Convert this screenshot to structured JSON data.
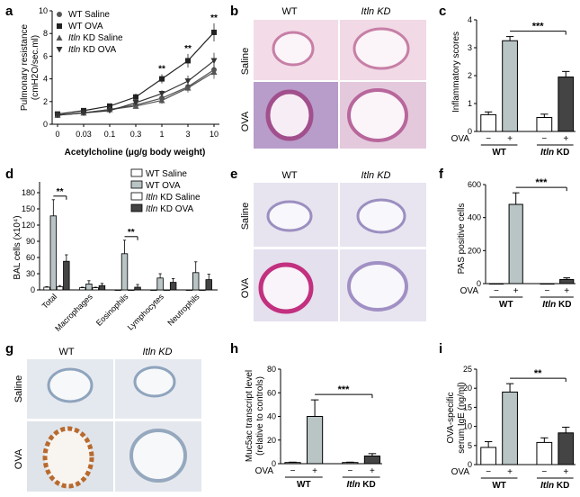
{
  "panel_letters": [
    "a",
    "b",
    "c",
    "d",
    "e",
    "f",
    "g",
    "h",
    "i"
  ],
  "micrographs": {
    "b": {
      "col_labels": [
        "WT",
        "Itln KD"
      ],
      "row_labels": [
        "Saline",
        "OVA"
      ]
    },
    "e": {
      "col_labels": [
        "WT",
        "Itln KD"
      ],
      "row_labels": [
        "Saline",
        "OVA"
      ]
    },
    "g": {
      "col_labels": [
        "WT",
        "Itln KD"
      ],
      "row_labels": [
        "Saline",
        "OVA"
      ]
    }
  },
  "group_axis": {
    "ova_label": "OVA",
    "ova_states": [
      "−",
      "+",
      "−",
      "+"
    ],
    "groups": [
      "WT",
      "Itln KD"
    ]
  },
  "colors": {
    "wt_saline": "#ffffff",
    "wt_ova": "#b9c4c5",
    "kd_saline": "#ffffff",
    "kd_ova": "#444444",
    "line_wt_saline": "#555555",
    "line_wt_ova": "#222222",
    "line_kd_saline": "#555555",
    "line_kd_ova": "#333333"
  },
  "chart_data": [
    {
      "panel": "a",
      "type": "line",
      "xlabel": "Acetylcholine (μg/g body weight)",
      "ylabel_line1": "Pulmonary resistance",
      "ylabel_line2": "(cmH2O/sec.ml)",
      "categories": [
        "0",
        "0.03",
        "0.1",
        "0.3",
        "1",
        "3",
        "10"
      ],
      "ylim": [
        0,
        10
      ],
      "yticks": [
        "0",
        "2",
        "4",
        "6",
        "8",
        "10"
      ],
      "series": [
        {
          "name": "WT Saline",
          "marker": "circle",
          "values": [
            0.8,
            1.0,
            1.3,
            1.7,
            2.3,
            3.3,
            4.8
          ],
          "err": [
            0.1,
            0.1,
            0.2,
            0.2,
            0.3,
            0.4,
            0.6
          ]
        },
        {
          "name": "WT OVA",
          "marker": "square",
          "values": [
            0.9,
            1.2,
            1.6,
            2.4,
            4.0,
            5.6,
            8.1
          ],
          "err": [
            0.1,
            0.1,
            0.2,
            0.3,
            0.4,
            0.6,
            0.8
          ]
        },
        {
          "name": "Itln KD Saline",
          "marker": "triangle-up",
          "values": [
            0.8,
            1.0,
            1.3,
            1.6,
            2.1,
            3.2,
            4.6
          ],
          "err": [
            0.1,
            0.1,
            0.2,
            0.2,
            0.3,
            0.4,
            0.6
          ]
        },
        {
          "name": "Itln KD OVA",
          "marker": "triangle-down",
          "values": [
            0.8,
            1.0,
            1.2,
            1.9,
            2.7,
            3.8,
            5.6
          ],
          "err": [
            0.1,
            0.1,
            0.2,
            0.2,
            0.3,
            0.5,
            0.7
          ]
        }
      ],
      "annotations": [
        "**",
        "**",
        "**"
      ]
    },
    {
      "panel": "c",
      "type": "bar",
      "ylabel": "Inflammatory scores",
      "ylim": [
        0,
        4
      ],
      "yticks": [
        "0",
        "1",
        "2",
        "3",
        "4"
      ],
      "values": [
        0.6,
        3.25,
        0.5,
        1.95
      ],
      "err": [
        0.1,
        0.15,
        0.12,
        0.2
      ],
      "sig": "***"
    },
    {
      "panel": "d",
      "type": "bar",
      "ylabel": "BAL cells (x10⁴)",
      "ylim": [
        0,
        200
      ],
      "yticks": [
        "0",
        "30",
        "60",
        "90",
        "120",
        "150",
        "180"
      ],
      "categories": [
        "Total",
        "Macrophages",
        "Eosinophils",
        "Lymphocytes",
        "Neutrophils"
      ],
      "series": [
        {
          "name": "WT Saline",
          "values": [
            5,
            4,
            0,
            0,
            0
          ],
          "err": [
            1,
            1,
            0,
            0,
            0
          ]
        },
        {
          "name": "WT OVA",
          "values": [
            137,
            11,
            67,
            22,
            32
          ],
          "err": [
            30,
            6,
            25,
            8,
            20
          ]
        },
        {
          "name": "Itln KD Saline",
          "values": [
            6,
            4,
            0,
            0,
            0
          ],
          "err": [
            2,
            1,
            0,
            0,
            0
          ]
        },
        {
          "name": "Itln KD OVA",
          "values": [
            53,
            8,
            5,
            14,
            19
          ],
          "err": [
            12,
            4,
            5,
            7,
            10
          ]
        }
      ],
      "annotations": [
        "**",
        "**"
      ]
    },
    {
      "panel": "f",
      "type": "bar",
      "ylabel": "PAS positive cells",
      "ylim": [
        0,
        600
      ],
      "yticks": [
        "0",
        "200",
        "400",
        "600"
      ],
      "values": [
        0,
        480,
        0,
        25
      ],
      "err": [
        0,
        70,
        0,
        10
      ],
      "sig": "***"
    },
    {
      "panel": "h",
      "type": "bar",
      "ylabel_line1": "Muc5ac transcript level",
      "ylabel_line2": "(relative to controls)",
      "ylim": [
        0,
        80
      ],
      "yticks": [
        "0",
        "20",
        "40",
        "60",
        "80"
      ],
      "values": [
        1,
        40,
        1,
        6.5
      ],
      "err": [
        0.3,
        14,
        0.3,
        2
      ],
      "sig": "***"
    },
    {
      "panel": "i",
      "type": "bar",
      "ylabel_line1": "OVA-specific",
      "ylabel_line2": "serum IgE (ng/ml)",
      "ylim": [
        0,
        25
      ],
      "yticks": [
        "0",
        "5",
        "10",
        "15",
        "20",
        "25"
      ],
      "values": [
        4.5,
        19,
        5.8,
        8.3
      ],
      "err": [
        1.5,
        2.2,
        1.2,
        1.5
      ],
      "sig": "**"
    }
  ]
}
